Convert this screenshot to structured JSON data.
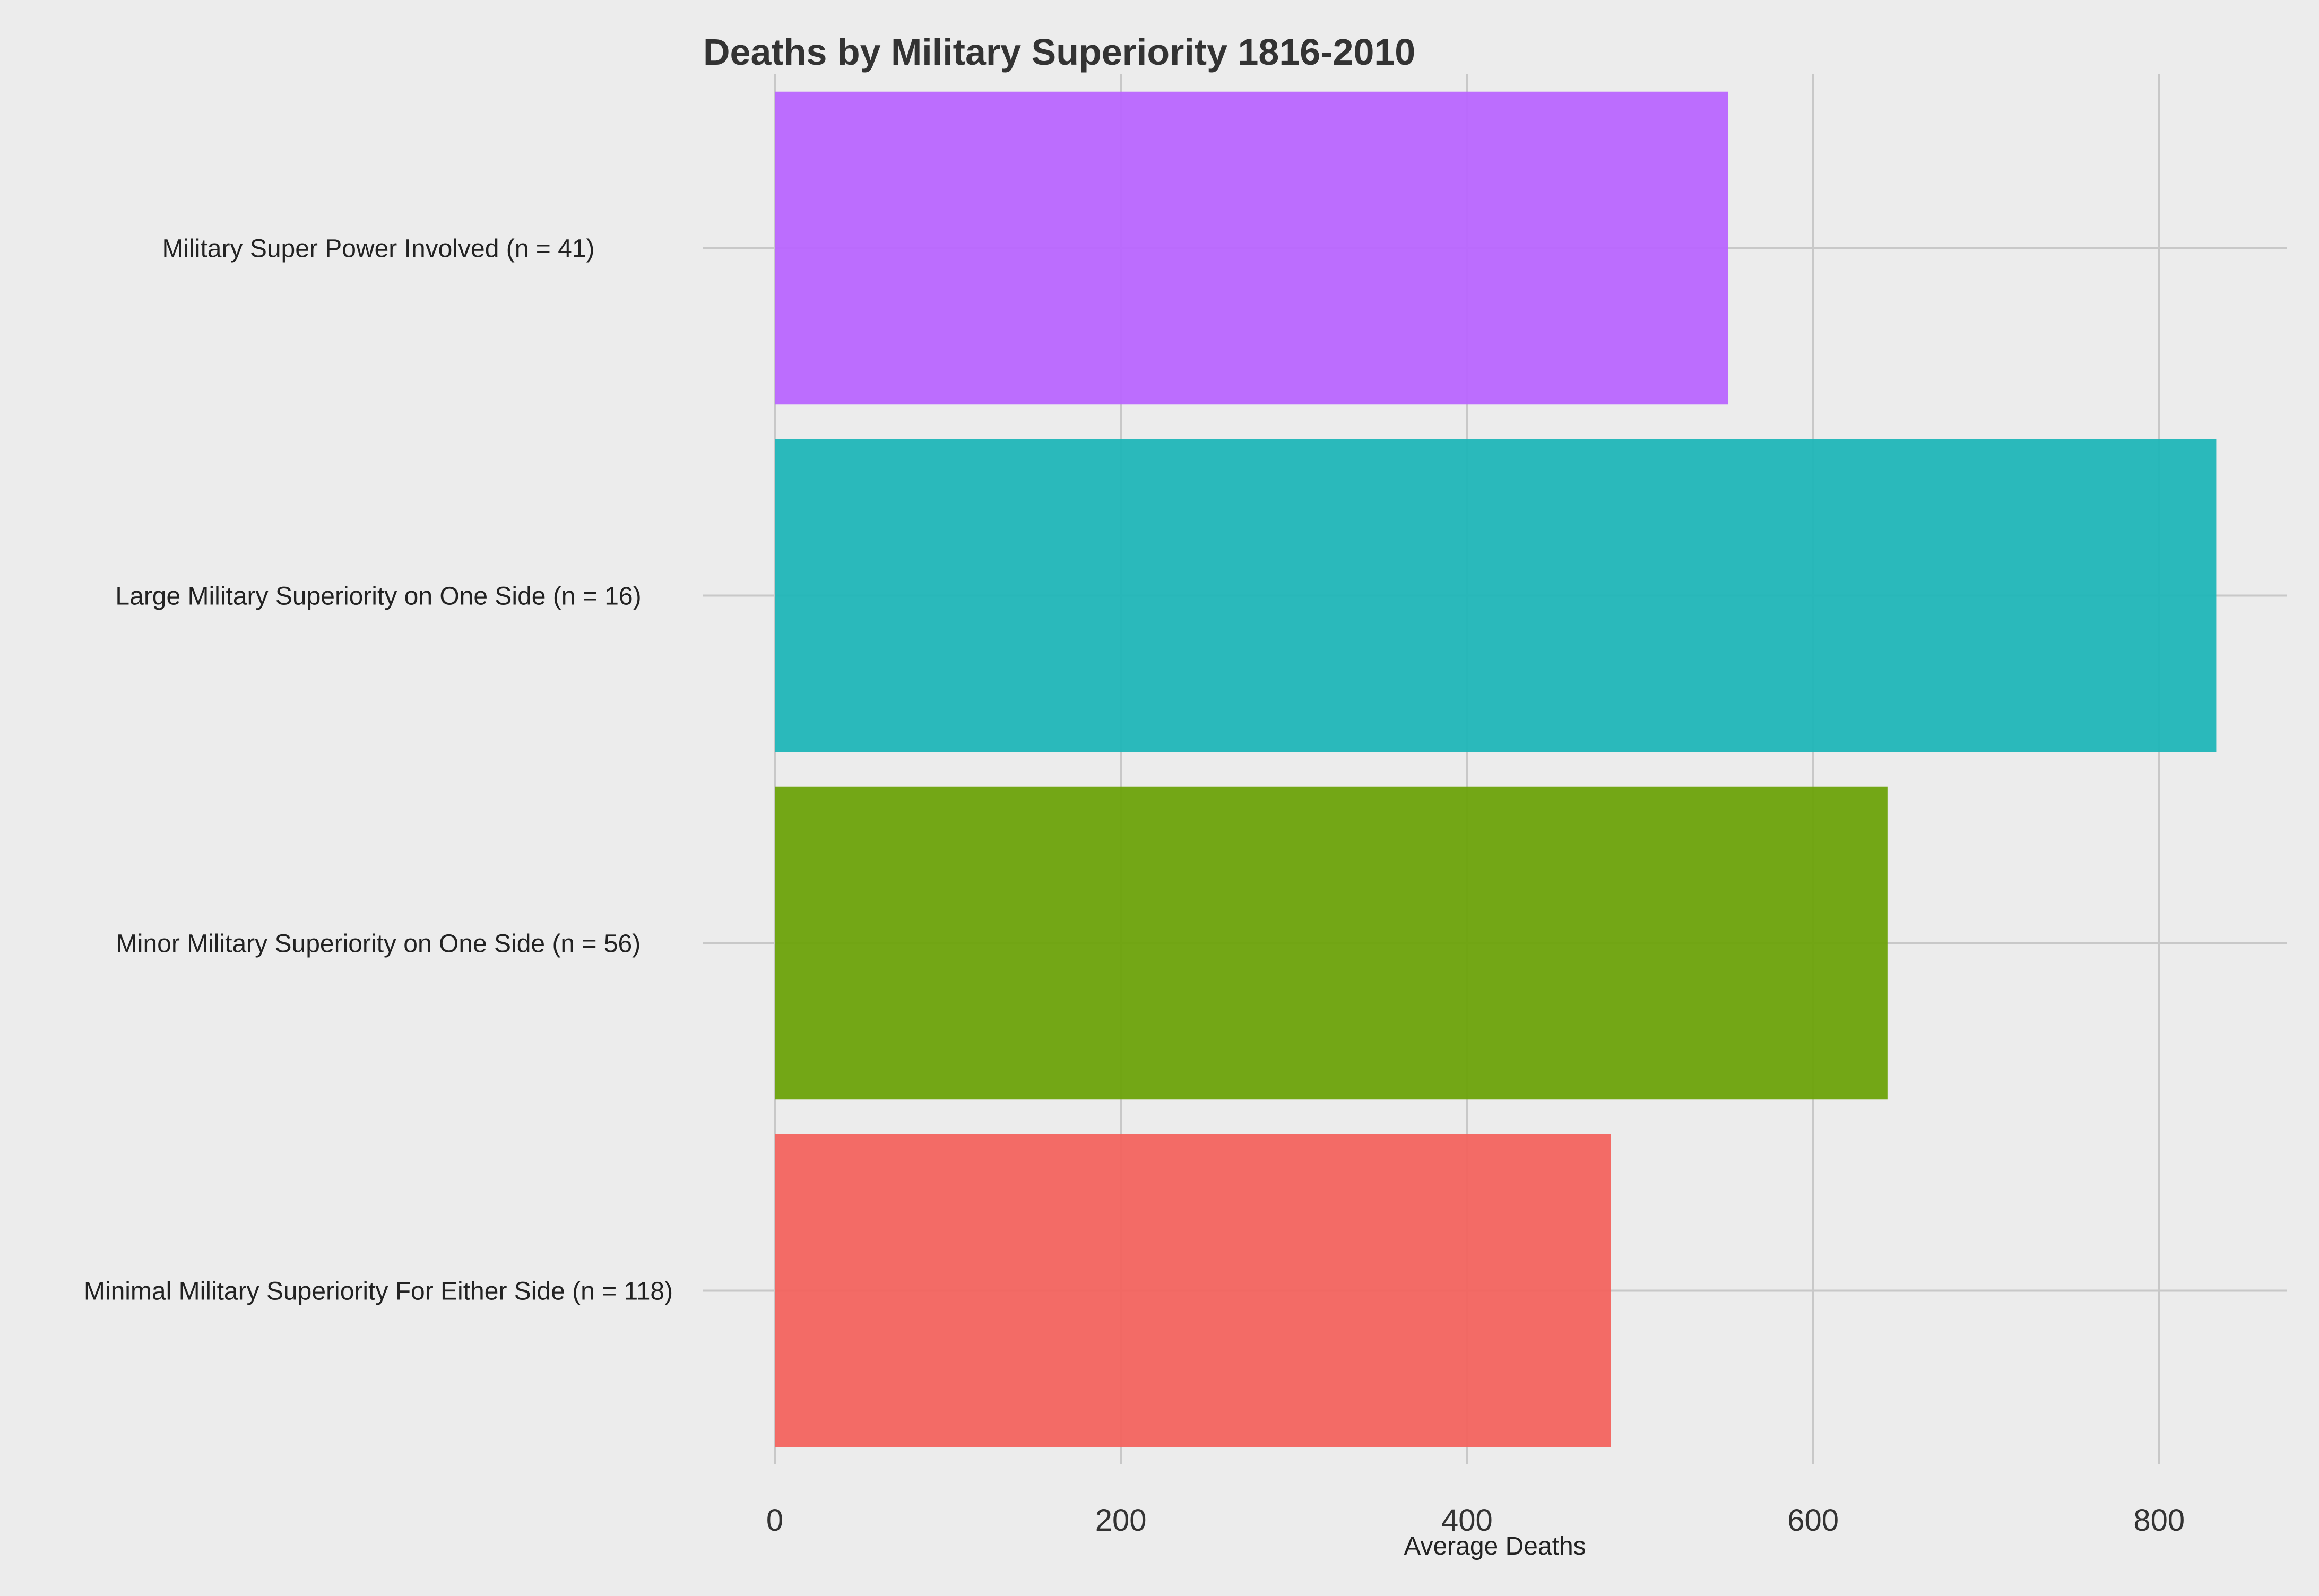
{
  "chart_data": {
    "type": "bar",
    "orientation": "horizontal",
    "title": "Deaths by Military Superiority 1816-2010",
    "xlabel": "Average Deaths",
    "ylabel": "",
    "xlim": [
      0,
      875
    ],
    "xticks": [
      0,
      200,
      400,
      600,
      800
    ],
    "grid": true,
    "legend": "none",
    "categories": [
      "Military Super Power Involved (n = 41)",
      "Large Military Superiority on One Side (n = 16)",
      "Minor Military Superiority on One Side (n = 56)",
      "Minimal Military Superiority For Either Side (n = 118)"
    ],
    "values": [
      551,
      833,
      643,
      483
    ],
    "colors": [
      "#b966ff",
      "#20b6b8",
      "#6da30b",
      "#f3645f"
    ]
  }
}
